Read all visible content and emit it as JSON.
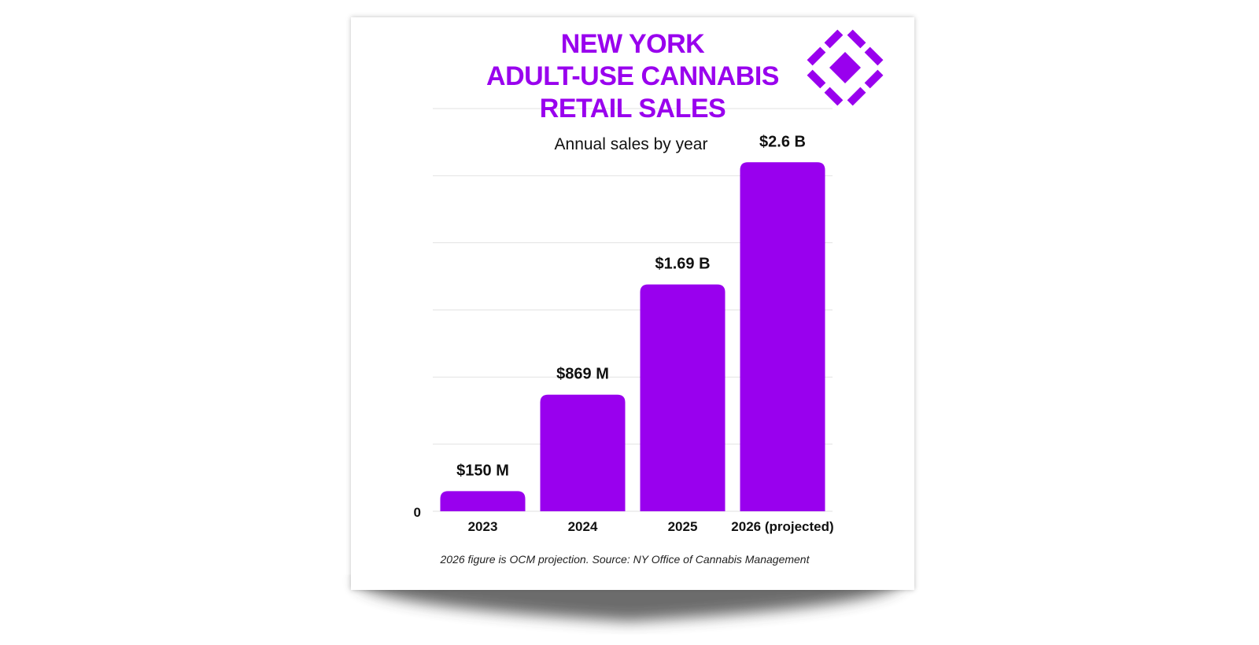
{
  "colors": {
    "accent": "#9900ee",
    "gridline": "#e2e2e2",
    "text": "#111111"
  },
  "logo": {
    "icon": "diamond-grid-logo-icon"
  },
  "chart_data": {
    "type": "bar",
    "title_lines": [
      "NEW YORK",
      "ADULT-USE CANNABIS",
      "RETAIL SALES"
    ],
    "subtitle": "Annual sales by year",
    "categories": [
      "2023",
      "2024",
      "2025",
      "2026 (projected)"
    ],
    "values": [
      0.15,
      0.869,
      1.69,
      2.6
    ],
    "value_unit": "billion USD",
    "data_labels": [
      "$150 M",
      "$869 M",
      "$1.69 B",
      "$2.6 B"
    ],
    "y_tick_label": "0",
    "ylim": [
      0,
      3.0
    ],
    "grid": true,
    "legend": "none",
    "footnote": "2026 figure is OCM projection. Source: NY Office of Cannabis Management"
  }
}
